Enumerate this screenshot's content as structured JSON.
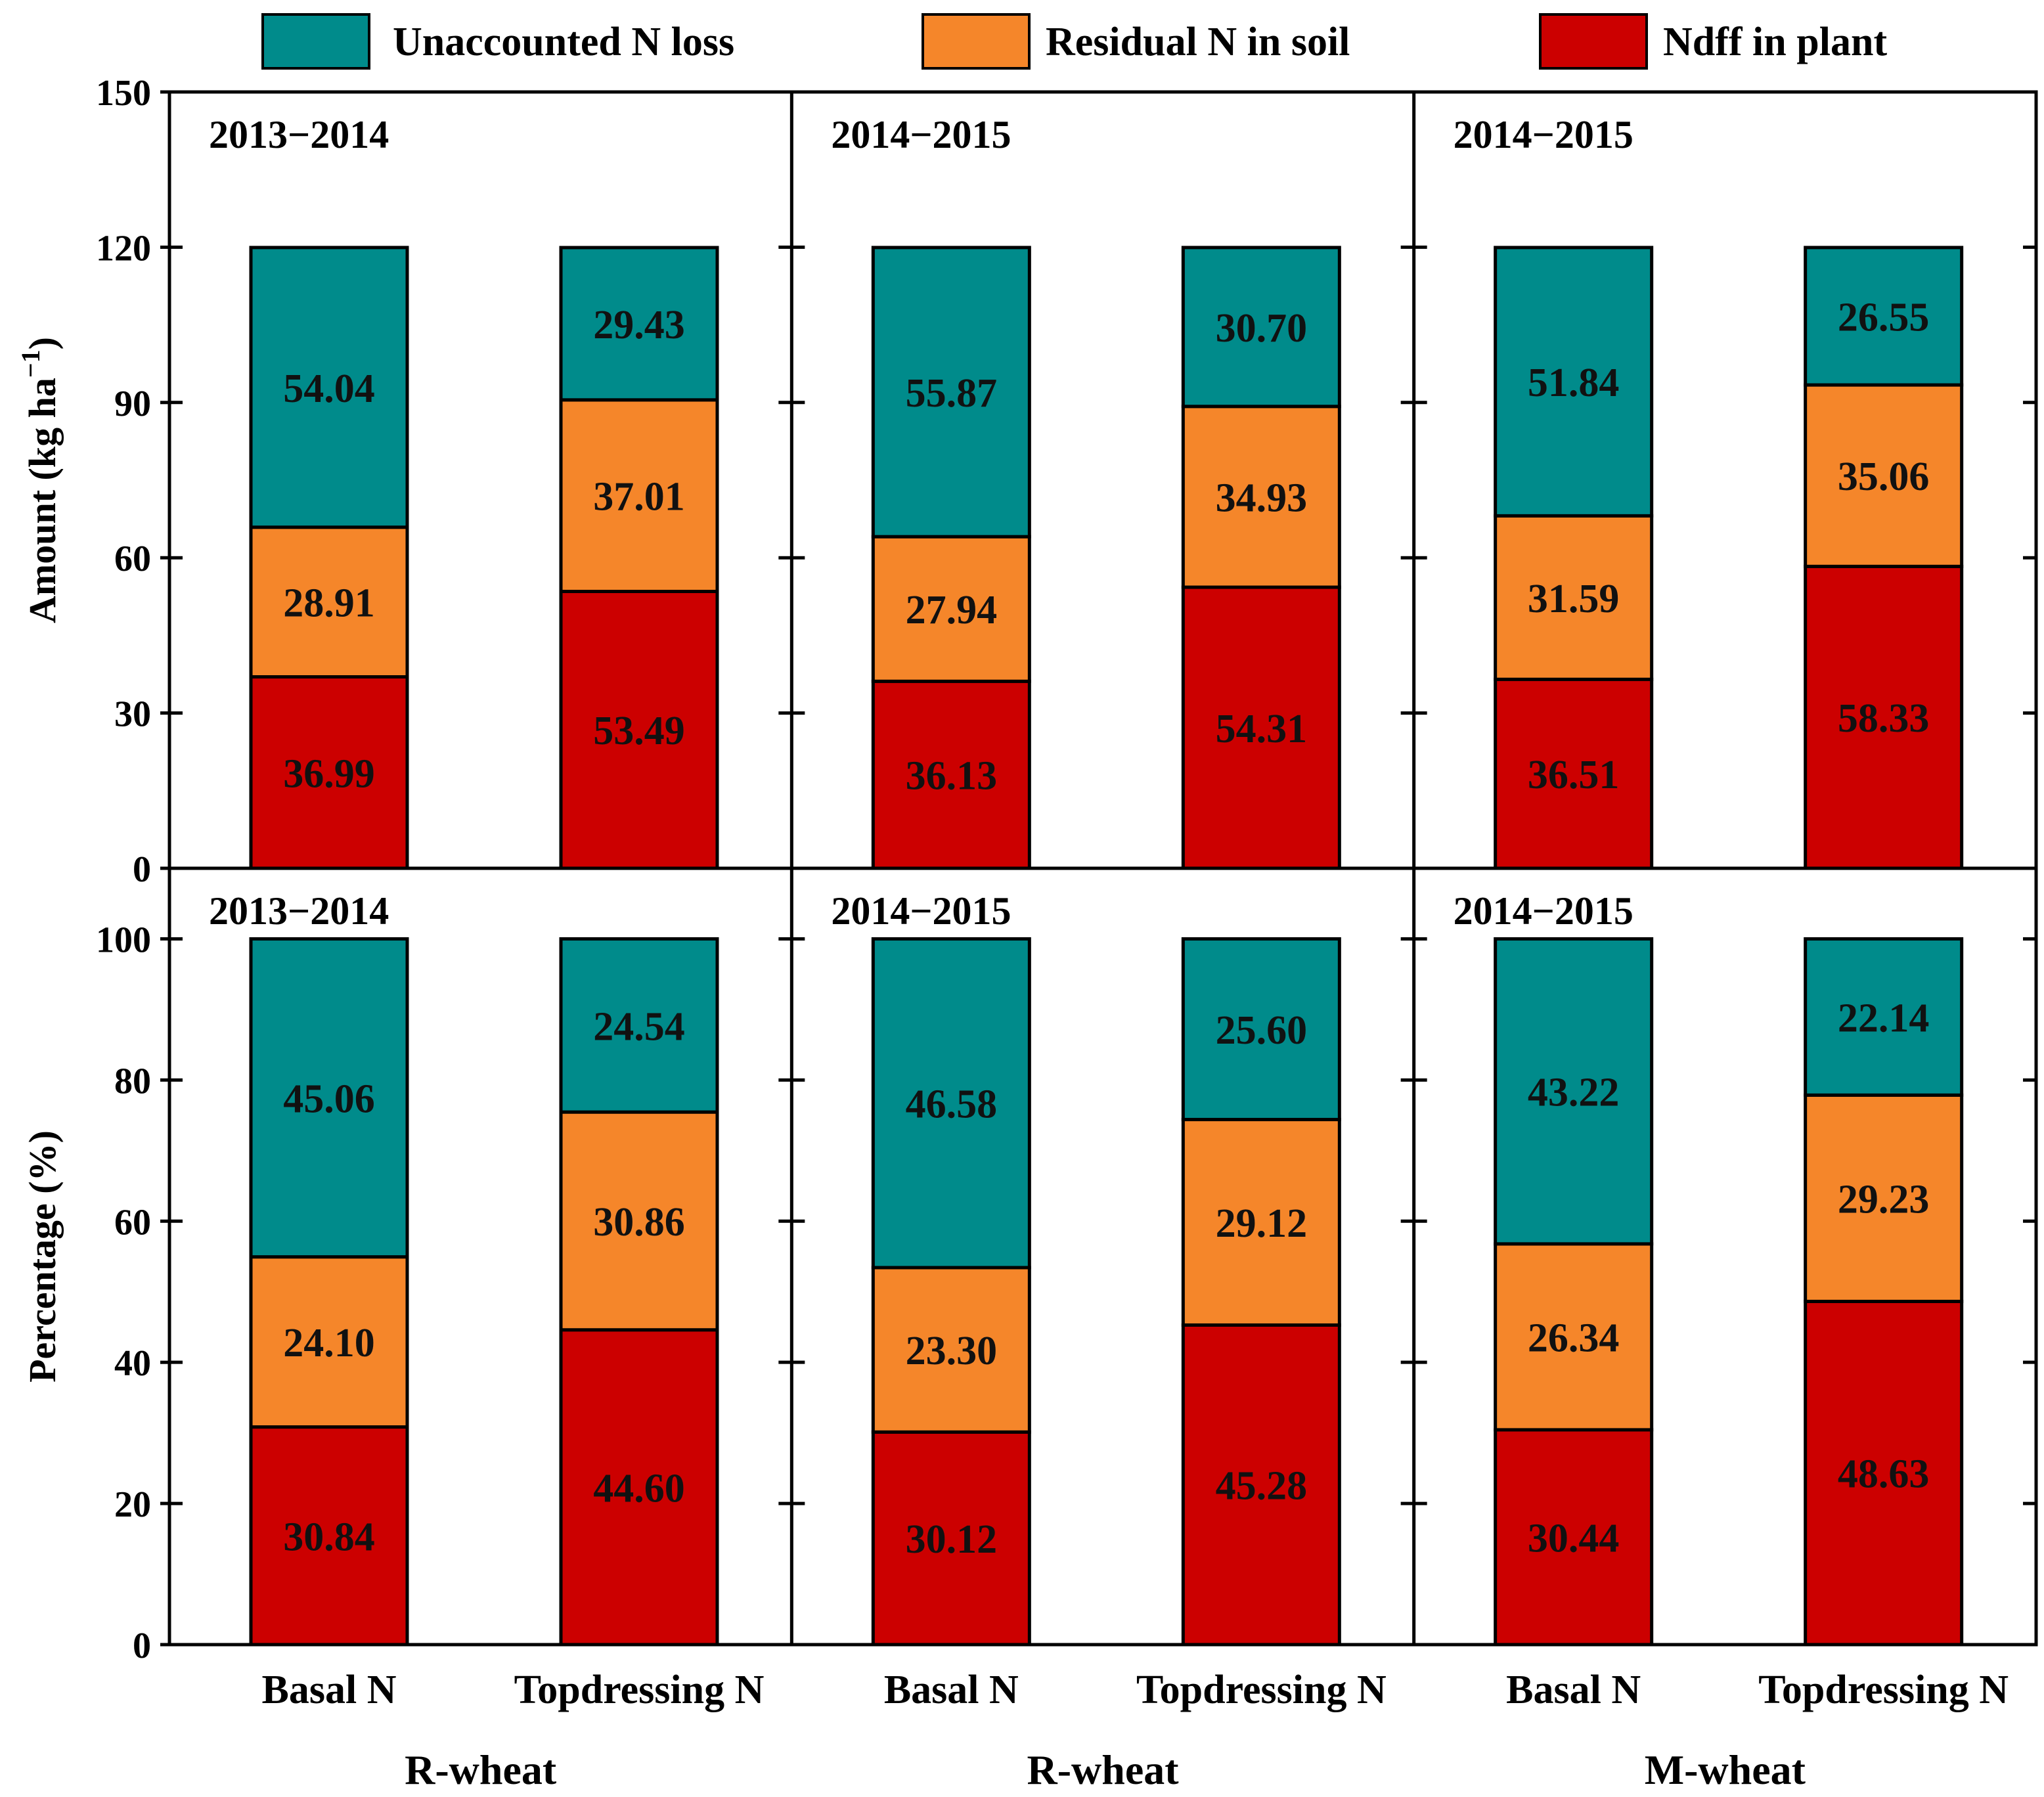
{
  "chart_data": {
    "type": "bar",
    "stacked": true,
    "legend": [
      {
        "name": "Unaccounted N loss",
        "color": "#008B8B"
      },
      {
        "name": "Residual N in soil",
        "color": "#F5862A"
      },
      {
        "name": "Ndff in plant",
        "color": "#CC0000"
      }
    ],
    "categories": [
      "Basal N",
      "Topdressing N"
    ],
    "groups": [
      {
        "label": "R-wheat",
        "amount_title": "2013−2014",
        "percent_title": "2013−2014"
      },
      {
        "label": "R-wheat",
        "amount_title": "2014−2015",
        "percent_title": "2014−2015"
      },
      {
        "label": "M-wheat",
        "amount_title": "2014−2015",
        "percent_title": "2014−2015"
      }
    ],
    "amount": {
      "ylabel": "Amount (kg ha",
      "ylabel_sup": "−1",
      "ylabel_end": ")",
      "ylim": [
        0,
        150
      ],
      "ticks": [
        0,
        30,
        60,
        90,
        120,
        150
      ],
      "tick_labels": [
        "0",
        "30",
        "60",
        "90",
        "120",
        "150"
      ],
      "panels": [
        {
          "bars": [
            {
              "category": "Basal N",
              "ndff": 36.99,
              "residual": 28.91,
              "loss": 54.04,
              "ndff_label": "36.99",
              "residual_label": "28.91",
              "loss_label": "54.04"
            },
            {
              "category": "Topdressing N",
              "ndff": 53.49,
              "residual": 37.01,
              "loss": 29.43,
              "ndff_label": "53.49",
              "residual_label": "37.01",
              "loss_label": "29.43"
            }
          ]
        },
        {
          "bars": [
            {
              "category": "Basal N",
              "ndff": 36.13,
              "residual": 27.94,
              "loss": 55.87,
              "ndff_label": "36.13",
              "residual_label": "27.94",
              "loss_label": "55.87"
            },
            {
              "category": "Topdressing N",
              "ndff": 54.31,
              "residual": 34.93,
              "loss": 30.7,
              "ndff_label": "54.31",
              "residual_label": "34.93",
              "loss_label": "30.70"
            }
          ]
        },
        {
          "bars": [
            {
              "category": "Basal N",
              "ndff": 36.51,
              "residual": 31.59,
              "loss": 51.84,
              "ndff_label": "36.51",
              "residual_label": "31.59",
              "loss_label": "51.84"
            },
            {
              "category": "Topdressing N",
              "ndff": 58.33,
              "residual": 35.06,
              "loss": 26.55,
              "ndff_label": "58.33",
              "residual_label": "35.06",
              "loss_label": "26.55"
            }
          ]
        }
      ]
    },
    "percentage": {
      "ylabel": "Percentage (%)",
      "ylim": [
        0,
        110
      ],
      "ticks": [
        0,
        20,
        40,
        60,
        80,
        100
      ],
      "tick_labels": [
        "0",
        "20",
        "40",
        "60",
        "80",
        "100"
      ],
      "panels": [
        {
          "bars": [
            {
              "category": "Basal N",
              "ndff": 30.84,
              "residual": 24.1,
              "loss": 45.06,
              "ndff_label": "30.84",
              "residual_label": "24.10",
              "loss_label": "45.06"
            },
            {
              "category": "Topdressing N",
              "ndff": 44.6,
              "residual": 30.86,
              "loss": 24.54,
              "ndff_label": "44.60",
              "residual_label": "30.86",
              "loss_label": "24.54"
            }
          ]
        },
        {
          "bars": [
            {
              "category": "Basal N",
              "ndff": 30.12,
              "residual": 23.3,
              "loss": 46.58,
              "ndff_label": "30.12",
              "residual_label": "23.30",
              "loss_label": "46.58"
            },
            {
              "category": "Topdressing N",
              "ndff": 45.28,
              "residual": 29.12,
              "loss": 25.6,
              "ndff_label": "45.28",
              "residual_label": "29.12",
              "loss_label": "25.60"
            }
          ]
        },
        {
          "bars": [
            {
              "category": "Basal N",
              "ndff": 30.44,
              "residual": 26.34,
              "loss": 43.22,
              "ndff_label": "30.44",
              "residual_label": "26.34",
              "loss_label": "43.22"
            },
            {
              "category": "Topdressing N",
              "ndff": 48.63,
              "residual": 29.23,
              "loss": 22.14,
              "ndff_label": "48.63",
              "residual_label": "29.23",
              "loss_label": "22.14"
            }
          ]
        }
      ]
    }
  }
}
